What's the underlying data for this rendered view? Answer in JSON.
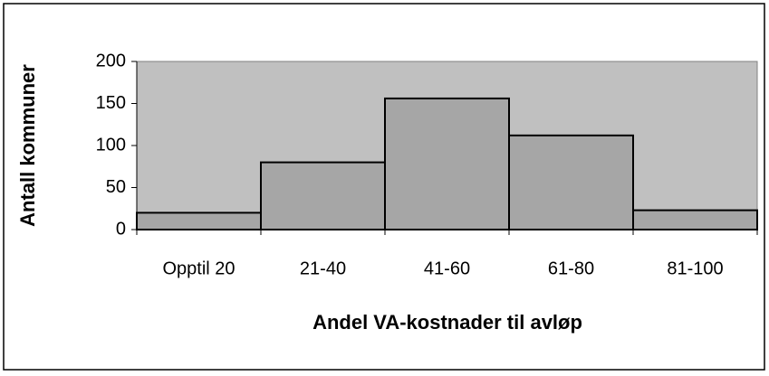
{
  "chart_data": {
    "type": "bar",
    "x_label": "Andel VA-kostnader til avløp",
    "y_label": "Antall kommuner",
    "categories": [
      "Opptil 20",
      "21-40",
      "41-60",
      "61-80",
      "81-100"
    ],
    "values": [
      20,
      80,
      156,
      112,
      23
    ],
    "color": "#a6a6a6",
    "background": "#c0c0c0",
    "ylim": [
      0,
      200
    ],
    "yticks": [
      0,
      50,
      100,
      150,
      200
    ],
    "grid": false
  }
}
